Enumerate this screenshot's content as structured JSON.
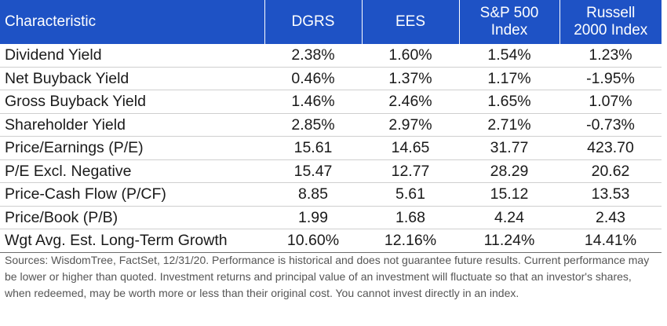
{
  "table": {
    "headers": [
      "Characteristic",
      "DGRS",
      "EES",
      "S&P 500\nIndex",
      "Russell\n2000 Index"
    ],
    "header_lines": [
      [
        "Characteristic"
      ],
      [
        "DGRS"
      ],
      [
        "EES"
      ],
      [
        "S&P 500",
        "Index"
      ],
      [
        "Russell",
        "2000 Index"
      ]
    ],
    "rows": [
      {
        "label": "Dividend Yield",
        "values": [
          "2.38%",
          "1.60%",
          "1.54%",
          "1.23%"
        ]
      },
      {
        "label": "Net Buyback Yield",
        "values": [
          "0.46%",
          "1.37%",
          "1.17%",
          "-1.95%"
        ]
      },
      {
        "label": "Gross Buyback Yield",
        "values": [
          "1.46%",
          "2.46%",
          "1.65%",
          "1.07%"
        ]
      },
      {
        "label": "Shareholder Yield",
        "values": [
          "2.85%",
          "2.97%",
          "2.71%",
          "-0.73%"
        ]
      },
      {
        "label": "Price/Earnings (P/E)",
        "values": [
          "15.61",
          "14.65",
          "31.77",
          "423.70"
        ]
      },
      {
        "label": "P/E Excl. Negative",
        "values": [
          "15.47",
          "12.77",
          "28.29",
          "20.62"
        ]
      },
      {
        "label": "Price-Cash Flow (P/CF)",
        "values": [
          "8.85",
          "5.61",
          "15.12",
          "13.53"
        ]
      },
      {
        "label": "Price/Book (P/B)",
        "values": [
          "1.99",
          "1.68",
          "4.24",
          "2.43"
        ]
      },
      {
        "label": "Wgt Avg. Est. Long-Term Growth",
        "values": [
          "10.60%",
          "12.16%",
          "11.24%",
          "14.41%"
        ]
      }
    ]
  },
  "footnote": "Sources: WisdomTree, FactSet, 12/31/20. Performance is historical and does not guarantee future results. Current performance may be lower or higher than quoted. Investment returns and principal value of an investment will fluctuate so that an investor's shares, when redeemed, may be worth more or less than their original cost. You cannot invest directly in an index.",
  "colors": {
    "header_bg": "#1e52c5",
    "header_text": "#ffffff",
    "body_text": "#1a1a1a",
    "footnote_text": "#555555"
  }
}
